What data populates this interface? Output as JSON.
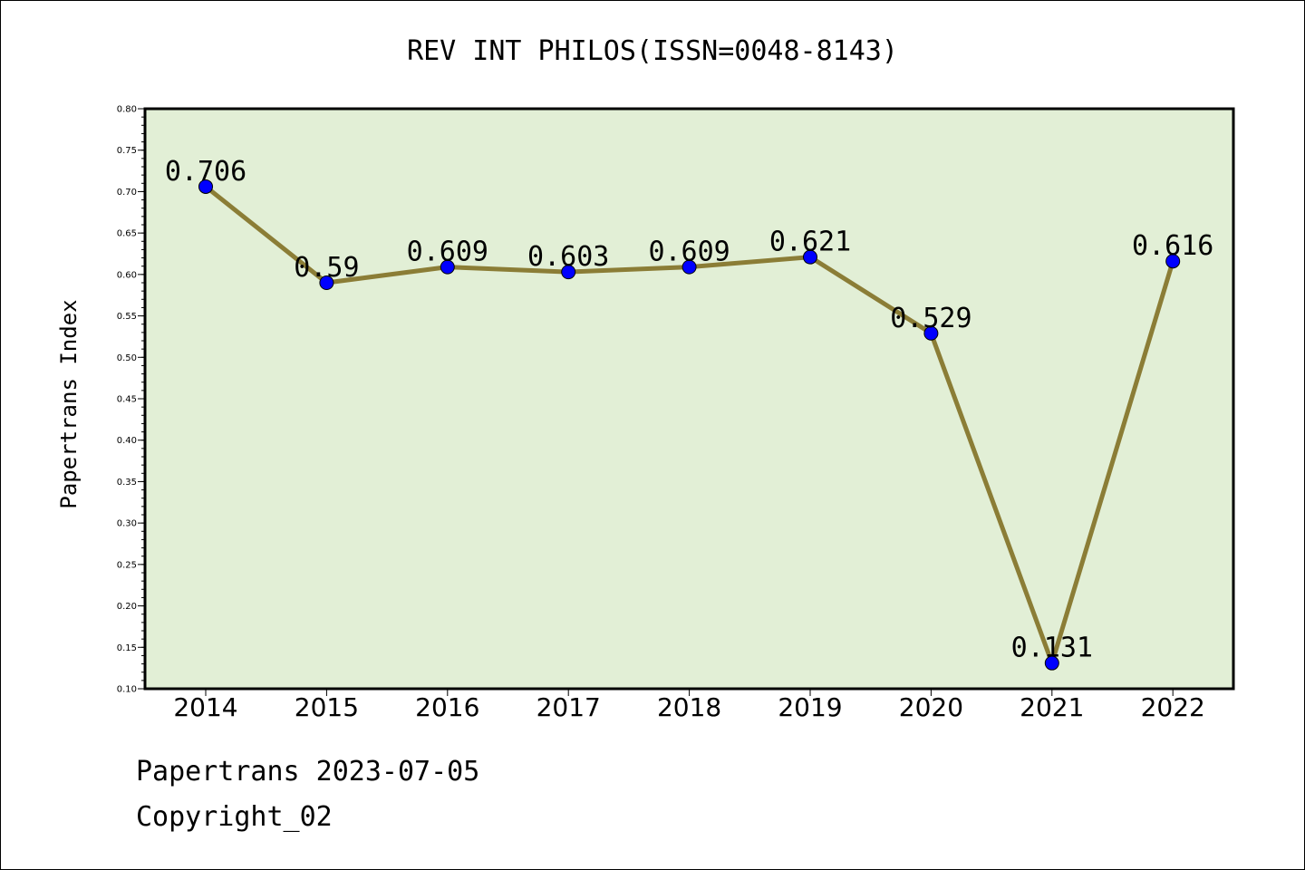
{
  "footer": {
    "line1": "Papertrans 2023-07-05",
    "line2": "Copyright_02"
  },
  "colors": {
    "plot_background": "#e2efd6",
    "line": "#8b7d36",
    "marker": "#0000ff"
  },
  "chart_data": {
    "type": "line",
    "title": "REV INT PHILOS(ISSN=0048-8143)",
    "xlabel": "",
    "ylabel": "Papertrans Index",
    "categories": [
      "2014",
      "2015",
      "2016",
      "2017",
      "2018",
      "2019",
      "2020",
      "2021",
      "2022"
    ],
    "series": [
      {
        "values": [
          0.706,
          0.59,
          0.609,
          0.603,
          0.609,
          0.621,
          0.529,
          0.131,
          0.616
        ],
        "data_labels": [
          "0.706",
          "0.59",
          "0.609",
          "0.603",
          "0.609",
          "0.621",
          "0.529",
          "0.131",
          "0.616"
        ]
      }
    ],
    "ylim": [
      0.1,
      0.8
    ],
    "yticks": [
      "0.10",
      "0.15",
      "0.20",
      "0.25",
      "0.30",
      "0.35",
      "0.40",
      "0.45",
      "0.50",
      "0.55",
      "0.60",
      "0.65",
      "0.70",
      "0.75",
      "0.80"
    ],
    "grid": false,
    "legend": "none"
  }
}
